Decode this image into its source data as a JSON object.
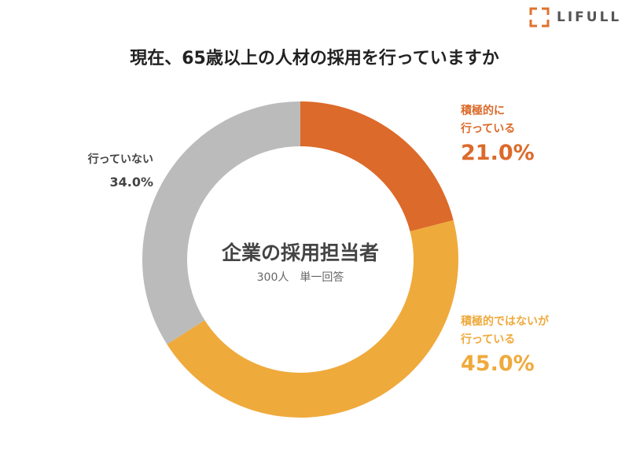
{
  "logo": {
    "text": "LIFULL",
    "color": "#E0722E"
  },
  "title": "現在、65歳以上の人材の採用を行っていますか",
  "center": {
    "title": "企業の採用担当者",
    "subtitle": "300人　単一回答"
  },
  "labels": [
    {
      "line1": "積極的に",
      "line2": "行っている",
      "value": "21.0%"
    },
    {
      "line1": "積極的ではないが",
      "line2": "行っている",
      "value": "45.0%"
    },
    {
      "line1": "行っていない",
      "line2": "",
      "value": "34.0%"
    }
  ],
  "chart_data": {
    "type": "pie",
    "donut": true,
    "title": "現在、65歳以上の人材の採用を行っていますか",
    "slices": [
      {
        "name": "積極的に行っている",
        "value": 21.0,
        "color": "#DC6A2A"
      },
      {
        "name": "積極的ではないが行っている",
        "value": 45.0,
        "color": "#EFAA3C"
      },
      {
        "name": "行っていない",
        "value": 34.0,
        "color": "#BBBBBB"
      }
    ],
    "total_label": "300人　単一回答"
  }
}
